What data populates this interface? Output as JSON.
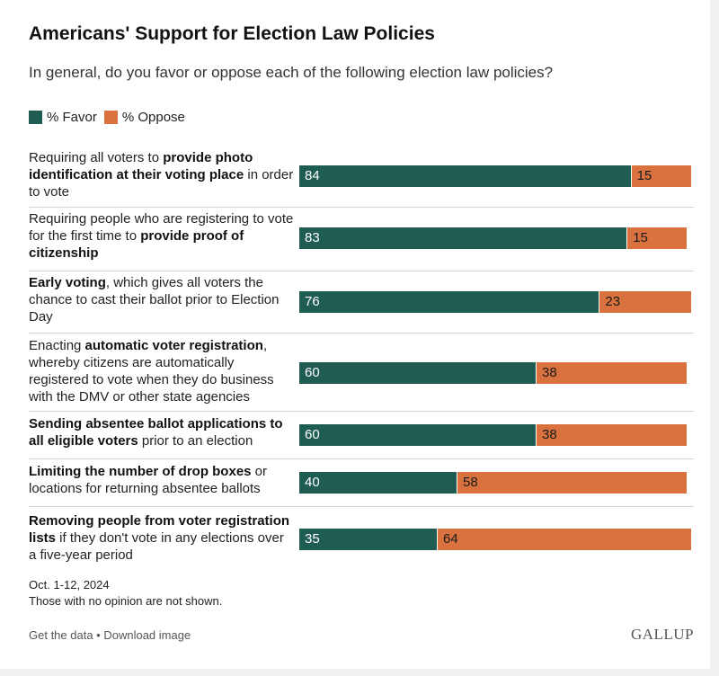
{
  "title": "Americans' Support for Election Law Policies",
  "subtitle": "In general, do you favor or oppose each of the following election law policies?",
  "legend": {
    "favor": "% Favor",
    "oppose": "% Oppose"
  },
  "colors": {
    "favor": "#1f5c52",
    "oppose": "#d9723f"
  },
  "chart_data": {
    "type": "bar",
    "orientation": "horizontal",
    "stacked": true,
    "xlim": [
      0,
      100
    ],
    "categories": [
      "Requiring all voters to provide photo identification at their voting place in order to vote",
      "Requiring people who are registering to vote for the first time to provide proof of citizenship",
      "Early voting, which gives all voters the chance to cast their ballot prior to Election Day",
      "Enacting automatic voter registration, whereby citizens are automatically registered to vote when they do business with the DMV or other state agencies",
      "Sending absentee ballot applications to all eligible voters prior to an election",
      "Limiting the number of drop boxes or locations for returning absentee ballots",
      "Removing people from voter registration lists if they don't vote in any elections over a five-year period"
    ],
    "series": [
      {
        "name": "% Favor",
        "values": [
          84,
          83,
          76,
          60,
          60,
          40,
          35
        ]
      },
      {
        "name": "% Oppose",
        "values": [
          15,
          15,
          23,
          38,
          38,
          58,
          64
        ]
      }
    ]
  },
  "rows": [
    {
      "parts": [
        {
          "t": "Requiring all voters to ",
          "b": false
        },
        {
          "t": "provide photo identification at their voting place",
          "b": true
        },
        {
          "t": " in order to vote",
          "b": false
        }
      ]
    },
    {
      "parts": [
        {
          "t": "Requiring people who are registering to vote for the first time to ",
          "b": false
        },
        {
          "t": "provide proof of citizenship",
          "b": true
        }
      ]
    },
    {
      "parts": [
        {
          "t": "Early voting",
          "b": true
        },
        {
          "t": ", which gives all voters the chance to cast their ballot prior to Election Day",
          "b": false
        }
      ]
    },
    {
      "parts": [
        {
          "t": "Enacting ",
          "b": false
        },
        {
          "t": "automatic voter registration",
          "b": true
        },
        {
          "t": ", whereby citizens are automatically registered to vote when they do business with the DMV or other state agencies",
          "b": false
        }
      ]
    },
    {
      "parts": [
        {
          "t": "Sending absentee ballot applications to all eligible voters",
          "b": true
        },
        {
          "t": " prior to an election",
          "b": false
        }
      ]
    },
    {
      "parts": [
        {
          "t": "Limiting the number of drop boxes",
          "b": true
        },
        {
          "t": " or locations for returning absentee ballots",
          "b": false
        }
      ]
    },
    {
      "parts": [
        {
          "t": "Removing people from voter registration lists",
          "b": true
        },
        {
          "t": " if they don't vote in any elections over a five-year period",
          "b": false
        }
      ]
    }
  ],
  "notes": {
    "date": "Oct. 1-12, 2024",
    "opinion": "Those with no opinion are not shown."
  },
  "footer": {
    "get_data": "Get the data",
    "separator": " • ",
    "download": "Download image"
  },
  "brand": "GALLUP"
}
